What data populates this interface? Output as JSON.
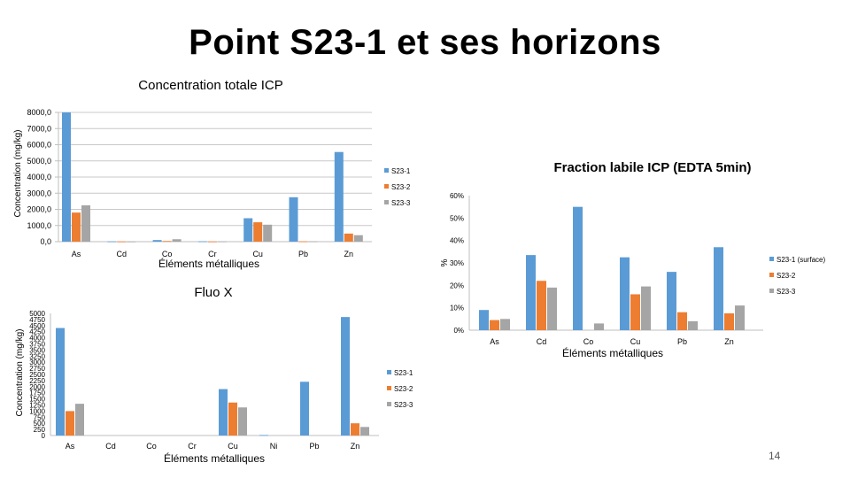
{
  "slide": {
    "title": "Point S23-1 et ses horizons",
    "page_number": "14"
  },
  "colors": {
    "S23-1": "#5b9bd5",
    "S23-2": "#ed7d31",
    "S23-3": "#a5a5a5",
    "gridline": "#c8c8c8",
    "axis": "#bfbfbf"
  },
  "chart_data": [
    {
      "id": "icp_total",
      "type": "bar",
      "title": "Concentration totale ICP",
      "xlabel": "Éléments métalliques",
      "ylabel": "Concentration (mg/kg)",
      "categories": [
        "As",
        "Cd",
        "Co",
        "Cr",
        "Cu",
        "Pb",
        "Zn"
      ],
      "ylim": [
        0,
        8000
      ],
      "yticks": [
        "0,0",
        "1000,0",
        "2000,0",
        "3000,0",
        "4000,0",
        "5000,0",
        "6000,0",
        "7000,0",
        "8000,0"
      ],
      "grid": true,
      "legend_position": "right",
      "series": [
        {
          "name": "S23-1",
          "color": "#5b9bd5",
          "values": [
            8000,
            15,
            100,
            20,
            1450,
            2750,
            5550
          ]
        },
        {
          "name": "S23-2",
          "color": "#ed7d31",
          "values": [
            1800,
            10,
            40,
            10,
            1200,
            20,
            500
          ]
        },
        {
          "name": "S23-3",
          "color": "#a5a5a5",
          "values": [
            2250,
            10,
            150,
            15,
            1050,
            20,
            400
          ]
        }
      ]
    },
    {
      "id": "fraction_labile",
      "type": "bar",
      "title": "Fraction labile ICP (EDTA 5min)",
      "xlabel": "Éléments métalliques",
      "ylabel": "%",
      "categories": [
        "As",
        "Cd",
        "Co",
        "Cu",
        "Pb",
        "Zn"
      ],
      "ylim": [
        0,
        60
      ],
      "yticks": [
        "0%",
        "10%",
        "20%",
        "30%",
        "40%",
        "50%",
        "60%"
      ],
      "grid": false,
      "legend_position": "right",
      "series": [
        {
          "name": "S23-1 (surface)",
          "color": "#5b9bd5",
          "values": [
            9,
            33.5,
            55,
            32.5,
            26,
            37
          ]
        },
        {
          "name": "S23-2",
          "color": "#ed7d31",
          "values": [
            4.5,
            22,
            0,
            16,
            8,
            7.5
          ]
        },
        {
          "name": "S23-3",
          "color": "#a5a5a5",
          "values": [
            5,
            19,
            3,
            19.5,
            4,
            11
          ]
        }
      ]
    },
    {
      "id": "fluo_x",
      "type": "bar",
      "title": "Fluo X",
      "xlabel": "Éléments métalliques",
      "ylabel": "Concentration (mg/kg)",
      "categories": [
        "As",
        "Cd",
        "Co",
        "Cr",
        "Cu",
        "Ni",
        "Pb",
        "Zn"
      ],
      "ylim": [
        0,
        5000
      ],
      "yticks": [
        "0",
        "250",
        "500",
        "750",
        "1000",
        "1250",
        "1500",
        "1750",
        "2000",
        "2250",
        "2500",
        "2750",
        "3000",
        "3250",
        "3500",
        "3750",
        "4000",
        "4250",
        "4500",
        "4750",
        "5000"
      ],
      "grid": false,
      "legend_position": "right",
      "series": [
        {
          "name": "S23-1",
          "color": "#5b9bd5",
          "values": [
            4400,
            0,
            0,
            0,
            1900,
            20,
            2200,
            4850
          ]
        },
        {
          "name": "S23-2",
          "color": "#ed7d31",
          "values": [
            1000,
            0,
            0,
            0,
            1350,
            0,
            0,
            500
          ]
        },
        {
          "name": "S23-3",
          "color": "#a5a5a5",
          "values": [
            1300,
            0,
            0,
            0,
            1150,
            0,
            0,
            350
          ]
        }
      ]
    }
  ]
}
